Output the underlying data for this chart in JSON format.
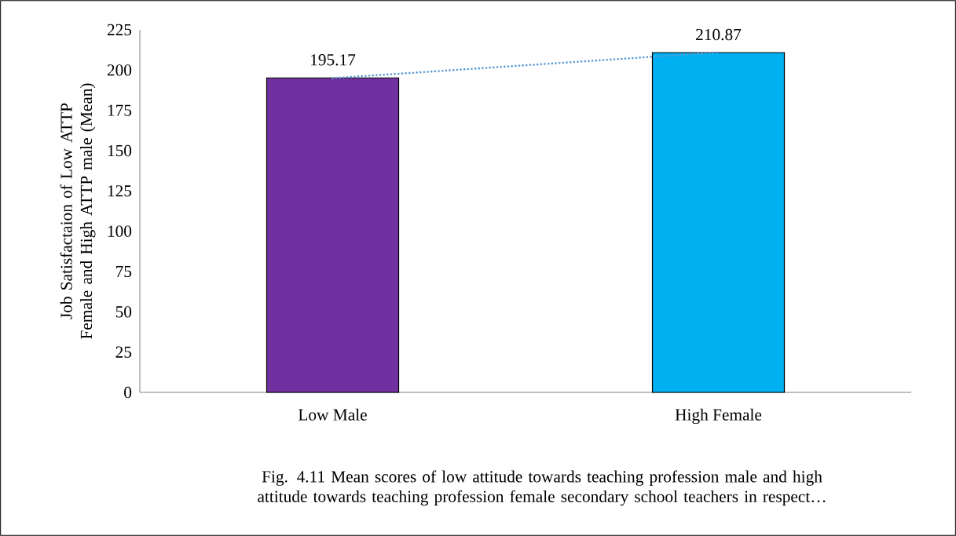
{
  "chart_data": {
    "type": "bar",
    "categories": [
      "Low Male",
      "High Female"
    ],
    "series": [
      {
        "values": [
          195.17,
          210.87
        ],
        "colors": [
          "#7030a0",
          "#00b0f0"
        ],
        "value_labels": [
          "195.17",
          "210.87"
        ]
      },
      {
        "type": "line",
        "values": [
          195,
          211
        ],
        "color": "#5b9bd5",
        "line_style": "dotted",
        "marker": "none"
      }
    ],
    "ylabel": "Job Satisfactaion of Low ATTP Female and High ATTP male (Mean)",
    "ylim": [
      0,
      225
    ],
    "yticks": [
      0,
      25,
      50,
      75,
      100,
      125,
      150,
      175,
      200,
      225
    ],
    "grid": false,
    "annotations": [
      "Fig. 4.11 Mean scores of low attitude towards teaching profession male and high attitude towards teaching profession female  secondary school teachers in respect…"
    ]
  }
}
